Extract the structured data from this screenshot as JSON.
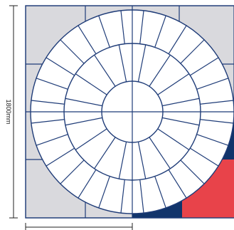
{
  "dimensions": {
    "vertical_label": "1800mm"
  },
  "colors": {
    "outline": "#1f3c78",
    "paving": "#d9d9dd",
    "circle_fill": "#ffffff",
    "accent_navy": "#11346b",
    "accent_red": "#e8434a",
    "dimension_line": "#222222"
  },
  "pattern": {
    "rings": 3,
    "outer_ring_segments": 28,
    "middle_ring_segments": 16,
    "inner_circle_divisions": 4
  }
}
